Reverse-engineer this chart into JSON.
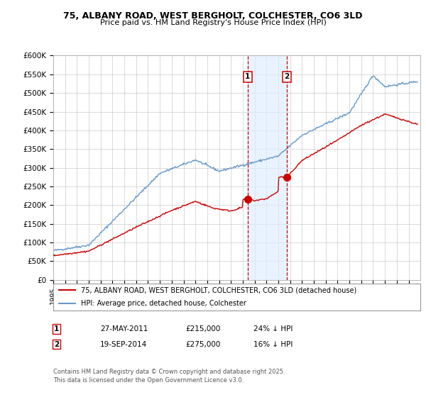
{
  "title_line1": "75, ALBANY ROAD, WEST BERGHOLT, COLCHESTER, CO6 3LD",
  "title_line2": "Price paid vs. HM Land Registry's House Price Index (HPI)",
  "ylabel_ticks": [
    "£0",
    "£50K",
    "£100K",
    "£150K",
    "£200K",
    "£250K",
    "£300K",
    "£350K",
    "£400K",
    "£450K",
    "£500K",
    "£550K",
    "£600K"
  ],
  "ytick_values": [
    0,
    50000,
    100000,
    150000,
    200000,
    250000,
    300000,
    350000,
    400000,
    450000,
    500000,
    550000,
    600000
  ],
  "hpi_color": "#6699cc",
  "price_color": "#cc0000",
  "marker1_date_x": 2011.41,
  "marker2_date_x": 2014.72,
  "marker1_price": 215000,
  "marker2_price": 275000,
  "annotation1_label": "1",
  "annotation2_label": "2",
  "legend_line1": "75, ALBANY ROAD, WEST BERGHOLT, COLCHESTER, CO6 3LD (detached house)",
  "legend_line2": "HPI: Average price, detached house, Colchester",
  "table_row1": [
    "1",
    "27-MAY-2011",
    "£215,000",
    "24% ↓ HPI"
  ],
  "table_row2": [
    "2",
    "19-SEP-2014",
    "£275,000",
    "16% ↓ HPI"
  ],
  "footnote": "Contains HM Land Registry data © Crown copyright and database right 2025.\nThis data is licensed under the Open Government Licence v3.0.",
  "xmin": 1995,
  "xmax": 2026,
  "ymin": 0,
  "ymax": 600000,
  "background_color": "#ffffff",
  "grid_color": "#cccccc"
}
